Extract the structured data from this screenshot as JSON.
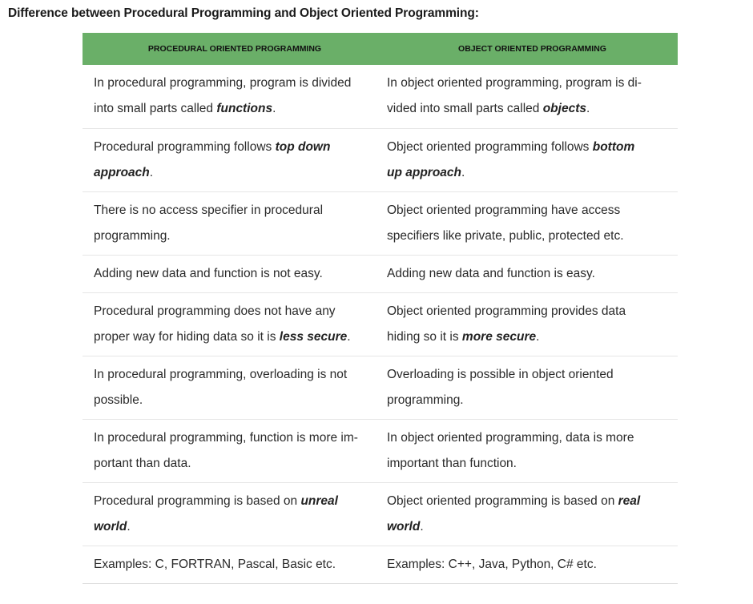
{
  "title": "Difference between Procedural Programming and Object Oriented Programming:",
  "header": {
    "col1": "PROCEDURAL ORIENTED PROGRAMMING",
    "col2": "OBJECT ORIENTED PROGRAMMING"
  },
  "rows": [
    {
      "left": {
        "l1": "In procedural programming, program is divided",
        "l2a": "into small parts called ",
        "em": "functions",
        "l2b": "."
      },
      "right": {
        "l1": "In object oriented programming, program is di-",
        "l2a": "vided into small parts called ",
        "em": "objects",
        "l2b": "."
      }
    },
    {
      "left": {
        "l1a": "Procedural programming follows ",
        "em1": "top down",
        "em2": "approach",
        "l2b": "."
      },
      "right": {
        "l1a": "Object oriented programming follows ",
        "em1": "bottom",
        "em2": "up approach",
        "l2b": "."
      }
    },
    {
      "left": {
        "l1": "There is no access specifier in procedural",
        "l2": "programming."
      },
      "right": {
        "l1": "Object oriented programming have access",
        "l2": "specifiers like private, public, protected etc."
      }
    },
    {
      "left": {
        "l1": "Adding new data and function is not easy."
      },
      "right": {
        "l1": "Adding new data and function is easy."
      }
    },
    {
      "left": {
        "l1": "Procedural programming does not have any",
        "l2a": "proper way for hiding data so it is ",
        "em": "less secure",
        "l2b": "."
      },
      "right": {
        "l1": "Object oriented programming provides data",
        "l2a": "hiding so it is ",
        "em": "more secure",
        "l2b": "."
      }
    },
    {
      "left": {
        "l1": "In procedural programming, overloading is not",
        "l2": "possible."
      },
      "right": {
        "l1": "Overloading is possible in object oriented",
        "l2": "programming."
      }
    },
    {
      "left": {
        "l1": "In procedural programming, function is more im-",
        "l2": "portant than data."
      },
      "right": {
        "l1": "In object oriented programming, data is more",
        "l2": "important than function."
      }
    },
    {
      "left": {
        "l1a": "Procedural programming is based on ",
        "em1": "unreal",
        "em2": "world",
        "l2b": "."
      },
      "right": {
        "l1a": "Object oriented programming is based on ",
        "em1": "real",
        "em2": "world",
        "l2b": "."
      }
    },
    {
      "left": {
        "l1": "Examples: C, FORTRAN, Pascal, Basic etc."
      },
      "right": {
        "l1": "Examples: C++, Java, Python, C# etc."
      }
    }
  ]
}
